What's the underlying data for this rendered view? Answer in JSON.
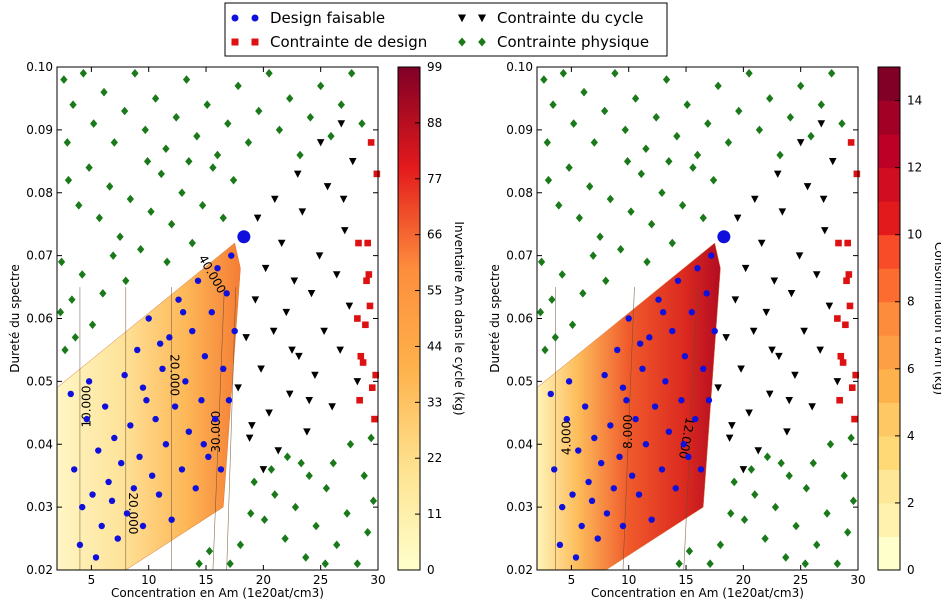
{
  "legend": {
    "placement": "top-center",
    "entries": [
      {
        "key": "feasible",
        "label": "Design faisable",
        "marker": "circle",
        "color": "#1010dd"
      },
      {
        "key": "cycle",
        "label": "Contrainte du cycle",
        "marker": "triangle-down",
        "color": "#000000"
      },
      {
        "key": "design",
        "label": "Contrainte de design",
        "marker": "square",
        "color": "#dd1111"
      },
      {
        "key": "physical",
        "label": "Contrainte physique",
        "marker": "diamond",
        "color": "#1a7a1a"
      }
    ]
  },
  "chart_data": [
    {
      "type": "scatter",
      "subtype": "filled-contour-with-scatter",
      "xlabel": "Concentration en Am (1e20at/cm3)",
      "ylabel": "Dureté du spectre",
      "xlim": [
        2,
        30
      ],
      "ylim": [
        0.02,
        0.1
      ],
      "xticks": [
        "5",
        "10",
        "15",
        "20",
        "25",
        "30"
      ],
      "yticks": [
        "0.02",
        "0.03",
        "0.04",
        "0.05",
        "0.06",
        "0.07",
        "0.08",
        "0.09",
        "0.10"
      ],
      "colorbar": {
        "label": "Inventaire Am dans le cycle (kg)",
        "range": [
          0,
          99
        ],
        "ticks": [
          "0",
          "11",
          "22",
          "33",
          "44",
          "55",
          "66",
          "77",
          "88",
          "99"
        ],
        "colormap": "YlOrRd"
      },
      "contour_labels": [
        "10.000",
        "20.000",
        "20.000",
        "30.000",
        "40.000"
      ],
      "feasible_region": [
        [
          2,
          0.02
        ],
        [
          8,
          0.02
        ],
        [
          16.5,
          0.03
        ],
        [
          18,
          0.068
        ],
        [
          17.5,
          0.072
        ],
        [
          2,
          0.049
        ]
      ],
      "optimum": [
        18.3,
        0.073
      ]
    },
    {
      "type": "scatter",
      "subtype": "filled-contour-with-scatter",
      "xlabel": "Concentration en Am (1e20at/cm3)",
      "ylabel": "Dureté du spectre",
      "xlim": [
        2,
        30
      ],
      "ylim": [
        0.02,
        0.1
      ],
      "xticks": [
        "5",
        "10",
        "15",
        "20",
        "25",
        "30"
      ],
      "yticks": [
        "0.02",
        "0.03",
        "0.04",
        "0.05",
        "0.06",
        "0.07",
        "0.08",
        "0.09",
        "0.10"
      ],
      "colorbar": {
        "label": "Consommation d'Am (kg)",
        "range": [
          0,
          15
        ],
        "ticks": [
          "0",
          "2",
          "4",
          "6",
          "8",
          "10",
          "12",
          "14"
        ],
        "colormap": "YlOrRd"
      },
      "contour_labels": [
        "4.000",
        "8.000",
        "12.000"
      ],
      "feasible_region": [
        [
          2,
          0.02
        ],
        [
          8,
          0.02
        ],
        [
          16.5,
          0.03
        ],
        [
          18,
          0.068
        ],
        [
          17.5,
          0.072
        ],
        [
          2,
          0.049
        ]
      ],
      "optimum": [
        18.3,
        0.073
      ]
    }
  ],
  "points": {
    "feasible": [
      [
        3.2,
        0.048
      ],
      [
        3.5,
        0.036
      ],
      [
        4.0,
        0.024
      ],
      [
        4.2,
        0.03
      ],
      [
        4.6,
        0.044
      ],
      [
        4.8,
        0.05
      ],
      [
        5.1,
        0.032
      ],
      [
        5.4,
        0.022
      ],
      [
        5.6,
        0.039
      ],
      [
        5.9,
        0.027
      ],
      [
        6.2,
        0.046
      ],
      [
        6.5,
        0.034
      ],
      [
        6.8,
        0.031
      ],
      [
        7.0,
        0.041
      ],
      [
        7.3,
        0.025
      ],
      [
        7.6,
        0.037
      ],
      [
        7.9,
        0.051
      ],
      [
        8.1,
        0.029
      ],
      [
        8.4,
        0.043
      ],
      [
        8.7,
        0.033
      ],
      [
        9.0,
        0.055
      ],
      [
        9.2,
        0.038
      ],
      [
        9.5,
        0.027
      ],
      [
        9.8,
        0.047
      ],
      [
        10.0,
        0.06
      ],
      [
        10.3,
        0.035
      ],
      [
        10.6,
        0.044
      ],
      [
        10.9,
        0.032
      ],
      [
        11.2,
        0.052
      ],
      [
        11.5,
        0.04
      ],
      [
        11.8,
        0.057
      ],
      [
        12.0,
        0.028
      ],
      [
        12.3,
        0.046
      ],
      [
        12.6,
        0.063
      ],
      [
        12.9,
        0.036
      ],
      [
        13.2,
        0.05
      ],
      [
        13.5,
        0.042
      ],
      [
        13.8,
        0.058
      ],
      [
        14.1,
        0.033
      ],
      [
        14.3,
        0.066
      ],
      [
        14.6,
        0.047
      ],
      [
        14.9,
        0.054
      ],
      [
        15.2,
        0.038
      ],
      [
        15.5,
        0.061
      ],
      [
        15.8,
        0.044
      ],
      [
        16.0,
        0.068
      ],
      [
        16.3,
        0.036
      ],
      [
        16.5,
        0.052
      ],
      [
        16.8,
        0.064
      ],
      [
        17.0,
        0.047
      ],
      [
        17.2,
        0.07
      ],
      [
        17.5,
        0.058
      ],
      [
        13.0,
        0.061
      ],
      [
        11.0,
        0.056
      ],
      [
        9.5,
        0.049
      ],
      [
        14.8,
        0.04
      ]
    ],
    "cycle": [
      [
        17.8,
        0.049
      ],
      [
        18.5,
        0.057
      ],
      [
        19.0,
        0.043
      ],
      [
        19.3,
        0.063
      ],
      [
        19.8,
        0.052
      ],
      [
        20.2,
        0.068
      ],
      [
        20.5,
        0.045
      ],
      [
        20.9,
        0.058
      ],
      [
        21.3,
        0.039
      ],
      [
        21.6,
        0.072
      ],
      [
        22.0,
        0.061
      ],
      [
        22.3,
        0.048
      ],
      [
        22.7,
        0.066
      ],
      [
        23.1,
        0.054
      ],
      [
        23.4,
        0.077
      ],
      [
        23.8,
        0.042
      ],
      [
        24.2,
        0.064
      ],
      [
        24.5,
        0.051
      ],
      [
        24.9,
        0.07
      ],
      [
        25.3,
        0.058
      ],
      [
        25.6,
        0.081
      ],
      [
        26.0,
        0.046
      ],
      [
        26.4,
        0.067
      ],
      [
        26.7,
        0.055
      ],
      [
        27.1,
        0.074
      ],
      [
        27.5,
        0.062
      ],
      [
        27.8,
        0.085
      ],
      [
        28.2,
        0.05
      ],
      [
        21.0,
        0.079
      ],
      [
        23.0,
        0.083
      ],
      [
        25.0,
        0.088
      ],
      [
        26.8,
        0.091
      ],
      [
        19.5,
        0.076
      ],
      [
        22.5,
        0.055
      ],
      [
        24.0,
        0.047
      ],
      [
        20.0,
        0.036
      ],
      [
        18.8,
        0.041
      ],
      [
        27.0,
        0.079
      ]
    ],
    "design": [
      [
        29.4,
        0.088
      ],
      [
        29.9,
        0.083
      ],
      [
        28.3,
        0.072
      ],
      [
        29.1,
        0.072
      ],
      [
        29.0,
        0.066
      ],
      [
        28.2,
        0.06
      ],
      [
        28.9,
        0.059
      ],
      [
        28.5,
        0.054
      ],
      [
        29.5,
        0.049
      ],
      [
        29.8,
        0.051
      ],
      [
        28.4,
        0.047
      ],
      [
        29.7,
        0.044
      ],
      [
        29.2,
        0.067
      ],
      [
        29.3,
        0.062
      ],
      [
        28.7,
        0.053
      ]
    ],
    "physical": [
      [
        2.6,
        0.098
      ],
      [
        3.4,
        0.094
      ],
      [
        4.3,
        0.099
      ],
      [
        5.2,
        0.091
      ],
      [
        6.1,
        0.096
      ],
      [
        7.0,
        0.088
      ],
      [
        7.9,
        0.093
      ],
      [
        8.8,
        0.099
      ],
      [
        9.7,
        0.09
      ],
      [
        10.6,
        0.095
      ],
      [
        11.5,
        0.087
      ],
      [
        12.4,
        0.092
      ],
      [
        13.3,
        0.098
      ],
      [
        14.2,
        0.089
      ],
      [
        15.1,
        0.094
      ],
      [
        16.0,
        0.086
      ],
      [
        16.9,
        0.091
      ],
      [
        17.8,
        0.097
      ],
      [
        18.7,
        0.088
      ],
      [
        19.6,
        0.093
      ],
      [
        20.5,
        0.099
      ],
      [
        21.4,
        0.09
      ],
      [
        22.3,
        0.095
      ],
      [
        23.2,
        0.086
      ],
      [
        24.1,
        0.092
      ],
      [
        25.0,
        0.097
      ],
      [
        25.9,
        0.089
      ],
      [
        26.8,
        0.094
      ],
      [
        27.7,
        0.099
      ],
      [
        28.6,
        0.091
      ],
      [
        3.0,
        0.082
      ],
      [
        3.9,
        0.078
      ],
      [
        4.8,
        0.084
      ],
      [
        5.7,
        0.076
      ],
      [
        6.6,
        0.081
      ],
      [
        7.5,
        0.073
      ],
      [
        8.4,
        0.079
      ],
      [
        9.3,
        0.071
      ],
      [
        10.2,
        0.077
      ],
      [
        11.1,
        0.083
      ],
      [
        12.0,
        0.075
      ],
      [
        12.9,
        0.08
      ],
      [
        13.8,
        0.072
      ],
      [
        14.7,
        0.078
      ],
      [
        15.6,
        0.084
      ],
      [
        16.5,
        0.076
      ],
      [
        2.4,
        0.069
      ],
      [
        3.3,
        0.063
      ],
      [
        4.2,
        0.067
      ],
      [
        5.1,
        0.059
      ],
      [
        6.0,
        0.064
      ],
      [
        2.7,
        0.055
      ],
      [
        3.6,
        0.057
      ],
      [
        2.3,
        0.061
      ],
      [
        19.2,
        0.034
      ],
      [
        20.1,
        0.028
      ],
      [
        21.0,
        0.032
      ],
      [
        21.9,
        0.025
      ],
      [
        22.8,
        0.03
      ],
      [
        23.7,
        0.022
      ],
      [
        24.6,
        0.027
      ],
      [
        25.5,
        0.033
      ],
      [
        26.4,
        0.024
      ],
      [
        27.3,
        0.029
      ],
      [
        28.2,
        0.021
      ],
      [
        29.1,
        0.026
      ],
      [
        29.6,
        0.031
      ],
      [
        18.0,
        0.024
      ],
      [
        18.9,
        0.029
      ],
      [
        17.1,
        0.021
      ],
      [
        15.3,
        0.023
      ],
      [
        14.4,
        0.021
      ],
      [
        20.7,
        0.036
      ],
      [
        24.0,
        0.035
      ],
      [
        26.1,
        0.037
      ],
      [
        28.8,
        0.035
      ],
      [
        22.1,
        0.038
      ],
      [
        27.6,
        0.04
      ],
      [
        8.0,
        0.066
      ],
      [
        11.6,
        0.069
      ],
      [
        6.9,
        0.07
      ],
      [
        13.5,
        0.085
      ],
      [
        9.9,
        0.085
      ],
      [
        17.4,
        0.082
      ],
      [
        2.9,
        0.088
      ],
      [
        29.4,
        0.041
      ],
      [
        25.4,
        0.021
      ],
      [
        23.3,
        0.037
      ]
    ]
  }
}
